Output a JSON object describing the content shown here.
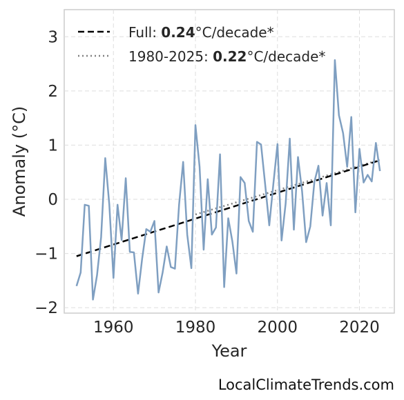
{
  "chart_data": {
    "type": "line",
    "xlabel": "Year",
    "ylabel": "Anomaly (°C)",
    "xlim": [
      1948,
      2028.5
    ],
    "ylim": [
      -2.1,
      3.5
    ],
    "x_ticks": [
      1960,
      1980,
      2000,
      2020
    ],
    "y_ticks": [
      -2,
      -1,
      0,
      1,
      2,
      3
    ],
    "y_tick_labels": [
      "−2",
      "−1",
      "0",
      "1",
      "2",
      "3"
    ],
    "grid": true,
    "legend_position": "top-left",
    "series": [
      {
        "color": "#7f9fc1",
        "x": [
          1951,
          1952,
          1953,
          1954,
          1955,
          1956,
          1957,
          1958,
          1959,
          1960,
          1961,
          1962,
          1963,
          1964,
          1965,
          1966,
          1967,
          1968,
          1969,
          1970,
          1971,
          1972,
          1973,
          1974,
          1975,
          1976,
          1977,
          1978,
          1979,
          1980,
          1981,
          1982,
          1983,
          1984,
          1985,
          1986,
          1987,
          1988,
          1989,
          1990,
          1991,
          1992,
          1993,
          1994,
          1995,
          1996,
          1997,
          1998,
          1999,
          2000,
          2001,
          2002,
          2003,
          2004,
          2005,
          2006,
          2007,
          2008,
          2009,
          2010,
          2011,
          2012,
          2013,
          2014,
          2015,
          2016,
          2017,
          2018,
          2019,
          2020,
          2021,
          2022,
          2023,
          2024,
          2025
        ],
        "values": [
          -1.6,
          -1.35,
          -0.1,
          -0.12,
          -1.85,
          -1.4,
          -0.7,
          0.76,
          -0.1,
          -1.45,
          -0.1,
          -0.75,
          0.39,
          -0.97,
          -0.98,
          -1.74,
          -1.1,
          -0.55,
          -0.6,
          -0.4,
          -1.72,
          -1.35,
          -0.87,
          -1.25,
          -1.28,
          -0.1,
          0.69,
          -0.65,
          -1.27,
          1.37,
          0.6,
          -0.93,
          0.37,
          -0.65,
          -0.52,
          0.83,
          -1.62,
          -0.35,
          -0.78,
          -1.37,
          0.41,
          0.3,
          -0.4,
          -0.6,
          1.06,
          1.01,
          0.27,
          -0.48,
          0.28,
          1.02,
          -0.76,
          -0.08,
          1.12,
          -0.56,
          0.78,
          0.15,
          -0.79,
          -0.5,
          0.32,
          0.62,
          -0.3,
          0.3,
          -0.48,
          2.57,
          1.55,
          1.22,
          0.6,
          1.52,
          -0.24,
          0.93,
          0.31,
          0.45,
          0.33,
          1.04,
          0.52
        ]
      }
    ],
    "trend_full": {
      "x": [
        1951,
        2025
      ],
      "y": [
        -1.05,
        0.72
      ],
      "color": "#000000"
    },
    "trend_recent": {
      "x": [
        1980,
        2025
      ],
      "y": [
        -0.28,
        0.73
      ],
      "color": "#808080"
    },
    "legend": [
      {
        "prefix": "Full: ",
        "bold": "0.24",
        "suffix": "°C/decade*",
        "style": "dashed"
      },
      {
        "prefix": "1980-2025: ",
        "bold": "0.22",
        "suffix": "°C/decade*",
        "style": "dotted"
      }
    ]
  },
  "watermark": "LocalClimateTrends.com"
}
